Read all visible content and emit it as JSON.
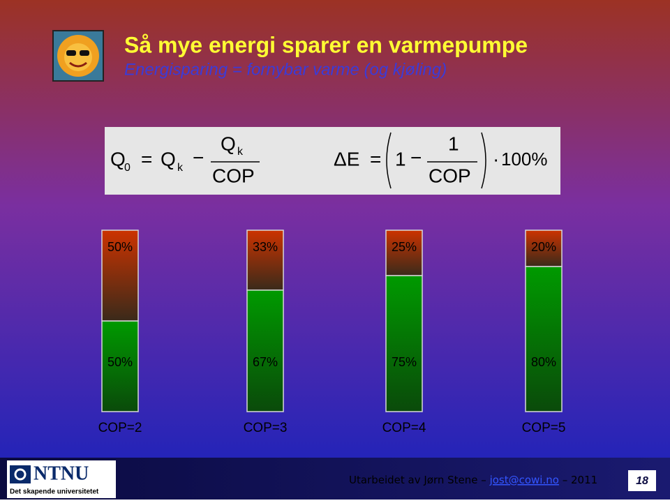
{
  "slide": {
    "title": "Så mye energi sparer en varmepumpe",
    "subtitle": "Energisparing = fornybar varme (og kjøling)",
    "formula_left": [
      "Q",
      "0",
      "=",
      "Q",
      "k",
      "−",
      "Q",
      "k",
      "COP"
    ],
    "formula_right": [
      "ΔE",
      "=",
      "1",
      "−",
      "1",
      "COP",
      "·",
      "100%"
    ],
    "logo": "NTNU",
    "logo_tagline": "Det skapende universitetet",
    "footer": [
      "Utarbeidet av Jørn Stene –",
      "jost@cowi.no",
      "– 2011"
    ],
    "page": "18"
  },
  "chart_data": {
    "type": "bar",
    "stacked": true,
    "categories": [
      "COP=2",
      "COP=3",
      "COP=4",
      "COP=5"
    ],
    "series": [
      {
        "color": "#009a00",
        "values": [
          50,
          67,
          75,
          80
        ],
        "value_labels": [
          "50%",
          "67%",
          "75%",
          "80%"
        ]
      },
      {
        "color": "#cc3300",
        "values": [
          50,
          33,
          25,
          20
        ],
        "value_labels": [
          "50%",
          "33%",
          "25%",
          "20%"
        ]
      }
    ],
    "ylim": [
      0,
      100
    ]
  }
}
